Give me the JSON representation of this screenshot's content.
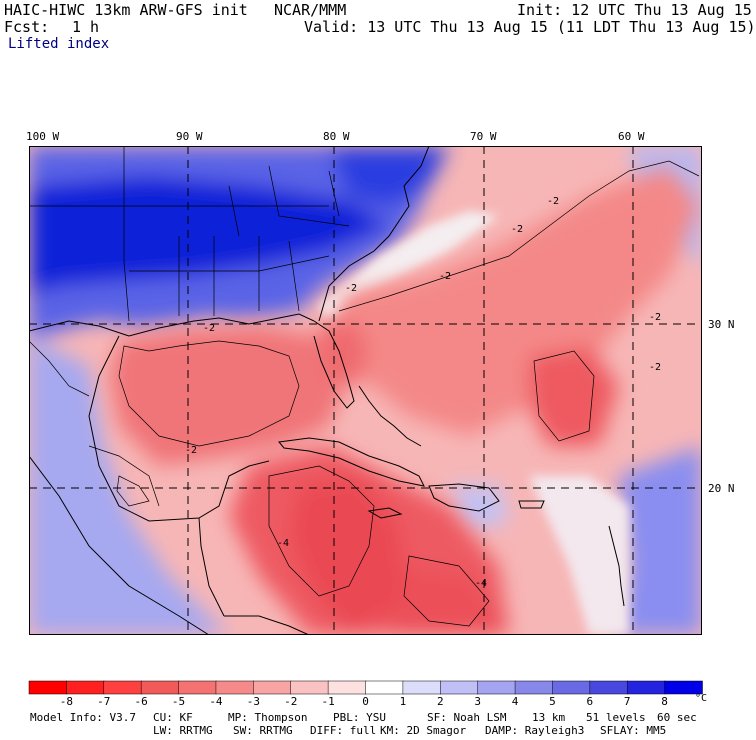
{
  "header": {
    "model_title": "HAIC-HIWC 13km ARW-GFS init",
    "center": "NCAR/MMM",
    "init": "Init: 12 UTC Thu 13 Aug 15",
    "fcst_label": "Fcst:",
    "fcst_value": "1 h",
    "valid": "Valid: 13 UTC Thu 13 Aug 15 (11 LDT Thu 13 Aug 15)",
    "field": "Lifted index"
  },
  "map": {
    "longitude_labels": [
      "100 W",
      "90 W",
      "80 W",
      "70 W",
      "60 W"
    ],
    "latitude_labels": [
      "30 N",
      "20 N"
    ],
    "contour_labels": [
      "-2",
      "-2",
      "-2",
      "-2",
      "-2",
      "-2",
      "-2",
      "-2",
      "-4",
      "-4"
    ],
    "colors": {
      "negative_strong": "#f0303a",
      "negative_mid": "#f07a7e",
      "negative_light": "#f8c4c4",
      "neutral": "#ffffff",
      "positive_light": "#c9c9f6",
      "positive_mid": "#7f7fe8",
      "positive_strong": "#0a1ad8"
    }
  },
  "colorbar": {
    "ticks": [
      "-8",
      "-7",
      "-6",
      "-5",
      "-4",
      "-3",
      "-2",
      "-1",
      "0",
      "1",
      "2",
      "3",
      "4",
      "5",
      "6",
      "7",
      "8"
    ],
    "unit": "°C",
    "colors": [
      "#ff0000",
      "#ff2020",
      "#ff4040",
      "#f25a5a",
      "#f47272",
      "#f68a8a",
      "#f8a4a4",
      "#fac2c2",
      "#fde0e0",
      "#ffffff",
      "#dcdcfb",
      "#c0c0f6",
      "#a4a4f0",
      "#8888ea",
      "#6a6ae4",
      "#4848de",
      "#2424e0",
      "#0000e8"
    ]
  },
  "footer": {
    "line1": [
      "Model Info: V3.7",
      "CU: KF",
      "MP: Thompson",
      "PBL: YSU",
      "SF: Noah LSM",
      "13 km",
      "51 levels",
      "60 sec"
    ],
    "line2": [
      "LW: RRTMG",
      "SW: RRTMG",
      "DIFF: full",
      "KM: 2D Smagor",
      "DAMP: Rayleigh3",
      "SFLAY: MM5"
    ]
  }
}
